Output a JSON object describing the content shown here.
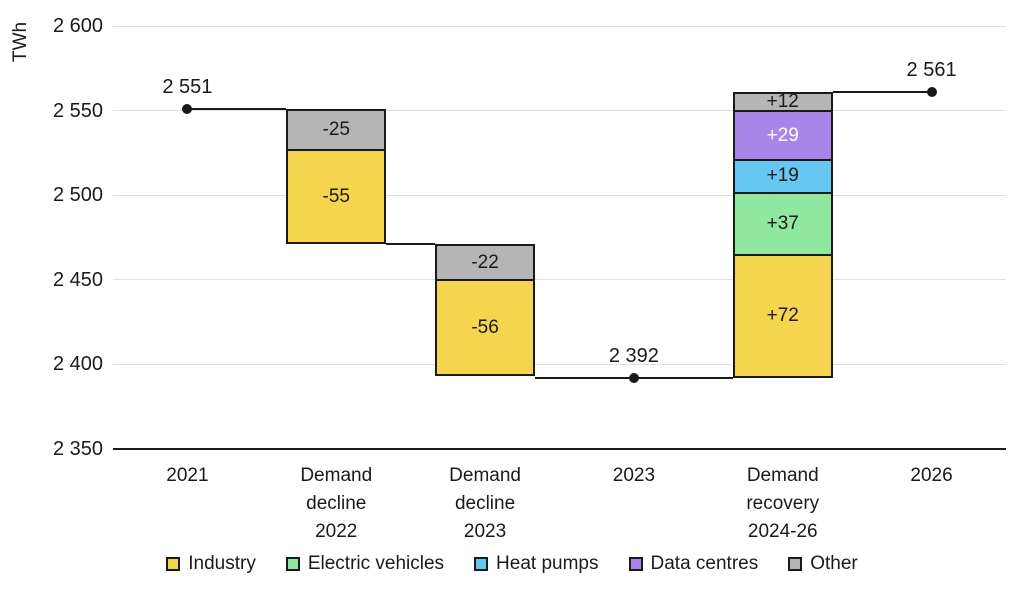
{
  "chart_data": {
    "type": "waterfall",
    "title": "",
    "ylabel": "TWh",
    "unit": "TWh",
    "ylim": [
      2350,
      2600
    ],
    "grid": "horizontal",
    "legend_position": "bottom",
    "yticks": [
      {
        "value": 2600,
        "label": "2 600"
      },
      {
        "value": 2550,
        "label": "2 550"
      },
      {
        "value": 2500,
        "label": "2 500"
      },
      {
        "value": 2450,
        "label": "2 450"
      },
      {
        "value": 2400,
        "label": "2 400"
      },
      {
        "value": 2350,
        "label": "2 350"
      }
    ],
    "columns": [
      {
        "id": "2021",
        "kind": "point",
        "label_lines": [
          "2021"
        ],
        "value": 2551,
        "value_label": "2 551"
      },
      {
        "id": "demand-decline-2022",
        "kind": "bar",
        "label_lines": [
          "Demand",
          "decline",
          "2022"
        ],
        "segments": [
          {
            "series": "Other",
            "value": -25,
            "label": "-25",
            "from": 2526,
            "to": 2551
          },
          {
            "series": "Industry",
            "value": -55,
            "label": "-55",
            "from": 2471,
            "to": 2526
          }
        ]
      },
      {
        "id": "demand-decline-2023",
        "kind": "bar",
        "label_lines": [
          "Demand",
          "decline",
          "2023"
        ],
        "segments": [
          {
            "series": "Other",
            "value": -22,
            "label": "-22",
            "from": 2449,
            "to": 2471
          },
          {
            "series": "Industry",
            "value": -56,
            "label": "-56",
            "from": 2393,
            "to": 2449
          }
        ]
      },
      {
        "id": "2023",
        "kind": "point",
        "label_lines": [
          "2023"
        ],
        "value": 2392,
        "value_label": "2 392"
      },
      {
        "id": "demand-recovery-2024-26",
        "kind": "bar",
        "label_lines": [
          "Demand",
          "recovery",
          "2024-26"
        ],
        "segments": [
          {
            "series": "Other",
            "value": 12,
            "label": "+12",
            "from": 2549,
            "to": 2561
          },
          {
            "series": "Data centres",
            "value": 29,
            "label": "+29",
            "from": 2520,
            "to": 2549,
            "text_color": "#FFFFFF"
          },
          {
            "series": "Heat pumps",
            "value": 19,
            "label": "+19",
            "from": 2501,
            "to": 2520
          },
          {
            "series": "Electric vehicles",
            "value": 37,
            "label": "+37",
            "from": 2464,
            "to": 2501
          },
          {
            "series": "Industry",
            "value": 72,
            "label": "+72",
            "from": 2392,
            "to": 2464
          }
        ]
      },
      {
        "id": "2026",
        "kind": "point",
        "label_lines": [
          "2026"
        ],
        "value": 2561,
        "value_label": "2 561"
      }
    ],
    "connectors": [
      {
        "level": 2551,
        "start_col": 0,
        "start_anchor": "center",
        "end_col": 1,
        "end_anchor": "left"
      },
      {
        "level": 2471,
        "start_col": 1,
        "start_anchor": "right",
        "end_col": 2,
        "end_anchor": "left"
      },
      {
        "level": 2392,
        "start_col": 2,
        "start_anchor": "right",
        "end_col": 4,
        "end_anchor": "left"
      },
      {
        "level": 2561,
        "start_col": 4,
        "start_anchor": "right",
        "end_col": 5,
        "end_anchor": "center"
      }
    ],
    "legend": [
      {
        "label": "Industry",
        "color": "#F5D44E"
      },
      {
        "label": "Electric vehicles",
        "color": "#90E89E"
      },
      {
        "label": "Heat pumps",
        "color": "#66C7F0"
      },
      {
        "label": "Data centres",
        "color": "#A885E8"
      },
      {
        "label": "Other",
        "color": "#B5B5B5"
      }
    ],
    "colors": {
      "axis": "#1A1A1A",
      "gridline": "#E0E0E0",
      "connector": "#1A1A1A",
      "bar_border": "#1A1A1A",
      "text": "#1A1A1A",
      "background": "#FFFFFF"
    }
  }
}
